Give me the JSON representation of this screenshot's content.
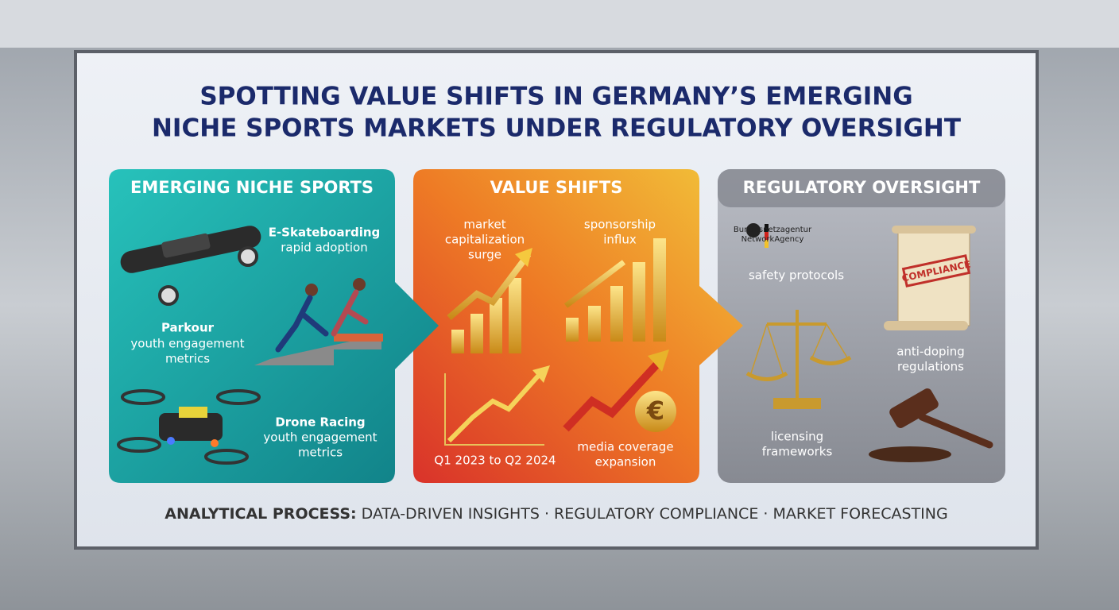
{
  "header": {
    "title_lines": [
      "SPOTTING VALUE SHIFTS IN GERMANY’S EMERGING",
      "NICHE SPORTS MARKETS UNDER REGULATORY OVERSIGHT"
    ]
  },
  "panels": [
    {
      "title": "EMERGING NICHE SPORTS",
      "items": [
        {
          "label": "E-Skateboarding",
          "lines": [
            "rapid adoption"
          ]
        },
        {
          "label": "Parkour",
          "lines": [
            "youth engagement",
            "metrics"
          ]
        },
        {
          "label": "Drone Racing",
          "lines": [
            "youth engagement",
            "metrics"
          ]
        }
      ]
    },
    {
      "title": "VALUE SHIFTS",
      "items": [
        {
          "lines": [
            "market",
            "capitalization",
            "surge"
          ]
        },
        {
          "lines": [
            "sponsorship",
            "influx"
          ]
        },
        {
          "lines": [
            "Q1 2023 to Q2 2024"
          ]
        },
        {
          "lines": [
            "media coverage",
            "expansion"
          ]
        }
      ],
      "currency_symbol": "€"
    },
    {
      "title": "REGULATORY OVERSIGHT",
      "agency_lines": [
        "Bundesnetzagentur",
        "NetworkAgency"
      ],
      "stamp": "COMPLIANCE",
      "items": [
        {
          "lines": [
            "safety protocols"
          ]
        },
        {
          "lines": [
            "anti-doping",
            "regulations"
          ]
        },
        {
          "lines": [
            "licensing",
            "frameworks"
          ]
        }
      ]
    }
  ],
  "footer": {
    "label": "ANALYTICAL PROCESS:",
    "text": " DATA-DRIVEN INSIGHTS · REGULATORY COMPLIANCE · MARKET FORECASTING"
  }
}
